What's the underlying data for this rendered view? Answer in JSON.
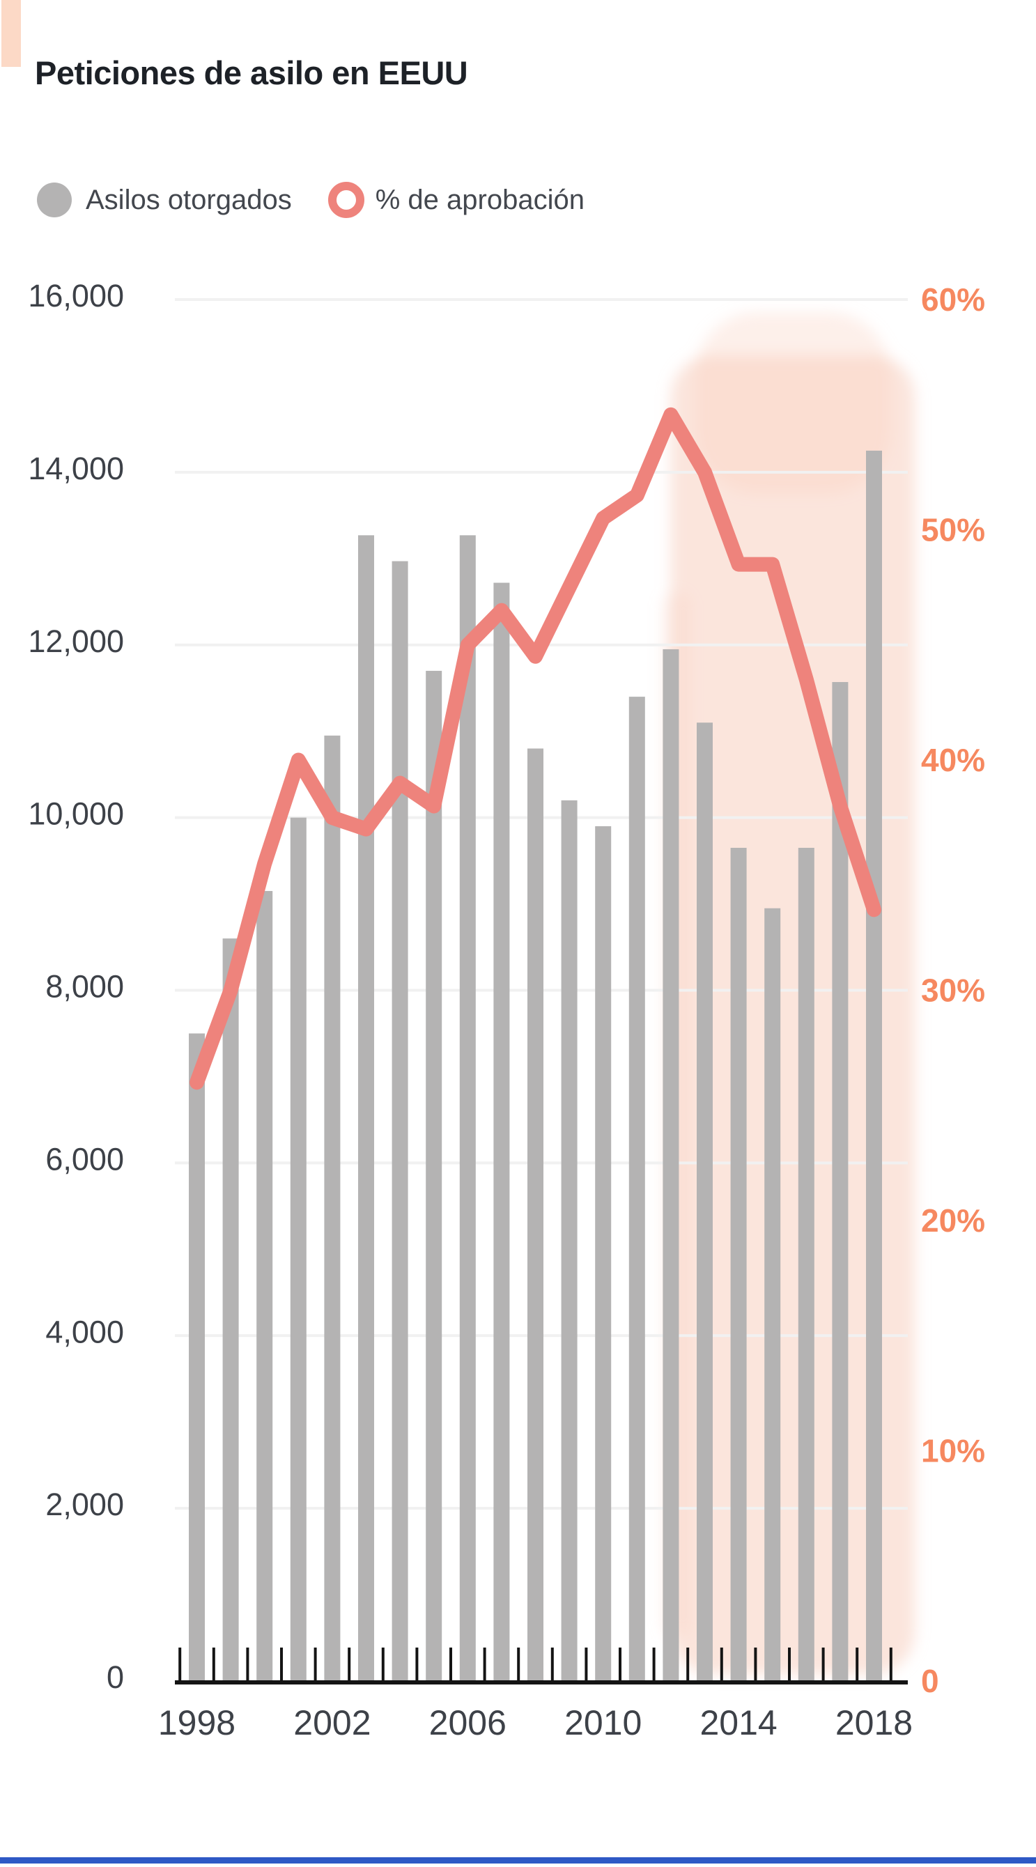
{
  "page": {
    "title": "Peticiones de asilo en EEUU",
    "accent_color": "#fcd9c6",
    "footer_accent_color": "#2e59c5"
  },
  "legend": {
    "items": [
      {
        "label": "Asilos otorgados",
        "swatch": "filled-circle",
        "color": "#b4b3b3"
      },
      {
        "label": "% de aprobación",
        "swatch": "ring",
        "color": "#ee837c"
      }
    ]
  },
  "chart_data": {
    "type": "bar",
    "subtype": "dual-axis bar + line",
    "title": "Peticiones de asilo en EEUU",
    "categories": [
      1998,
      1999,
      2000,
      2001,
      2002,
      2003,
      2004,
      2005,
      2006,
      2007,
      2008,
      2009,
      2010,
      2011,
      2012,
      2013,
      2014,
      2015,
      2016,
      2017,
      2018
    ],
    "series": [
      {
        "name": "Asilos otorgados",
        "type": "bar",
        "axis": "left",
        "color": "#b4b3b3",
        "values": [
          7500,
          8600,
          9150,
          10000,
          10950,
          13270,
          12970,
          11700,
          13270,
          12720,
          10800,
          10200,
          9900,
          11400,
          11950,
          11100,
          9650,
          8950,
          9650,
          11570,
          14250
        ]
      },
      {
        "name": "% de aprobación",
        "type": "line",
        "axis": "right",
        "color": "#ee837c",
        "values": [
          26,
          30,
          35.5,
          40,
          37.5,
          37,
          39,
          38,
          45,
          46.5,
          44.5,
          47.5,
          50.5,
          51.5,
          55,
          52.5,
          48.5,
          48.5,
          43.5,
          38,
          33.5
        ]
      }
    ],
    "left_axis": {
      "min": 0,
      "max": 16000,
      "step": 2000,
      "color": "#3d4148",
      "ticks": [
        {
          "v": 16000,
          "label": "16,000"
        },
        {
          "v": 14000,
          "label": "14,000"
        },
        {
          "v": 12000,
          "label": "12,000"
        },
        {
          "v": 10000,
          "label": "10,000"
        },
        {
          "v": 8000,
          "label": "8,000"
        },
        {
          "v": 6000,
          "label": "6,000"
        },
        {
          "v": 4000,
          "label": "4,000"
        },
        {
          "v": 2000,
          "label": "2,000"
        },
        {
          "v": 0,
          "label": "0"
        }
      ]
    },
    "right_axis": {
      "min": 0,
      "max": 60,
      "step": 10,
      "color": "#f6885f",
      "ticks": [
        {
          "v": 60,
          "label": "60%"
        },
        {
          "v": 50,
          "label": "50%"
        },
        {
          "v": 40,
          "label": "40%"
        },
        {
          "v": 30,
          "label": "30%"
        },
        {
          "v": 20,
          "label": "20%"
        },
        {
          "v": 10,
          "label": "10%"
        },
        {
          "v": 0,
          "label": "0"
        }
      ]
    },
    "x_axis": {
      "color": "#3d4148",
      "tick_labels": [
        {
          "index": 0,
          "label": "1998"
        },
        {
          "index": 4,
          "label": "2002"
        },
        {
          "index": 8,
          "label": "2006"
        },
        {
          "index": 12,
          "label": "2010"
        },
        {
          "index": 16,
          "label": "2014"
        },
        {
          "index": 20,
          "label": "2018"
        }
      ]
    },
    "grid": {
      "horizontal": true,
      "vertical": false,
      "color": "#f1f1f1"
    },
    "highlight_band": {
      "from_category": 2012,
      "to_category": 2018,
      "color": "#f7cdbb",
      "style": "soft watercolor vertical band behind 2013-2018"
    }
  }
}
